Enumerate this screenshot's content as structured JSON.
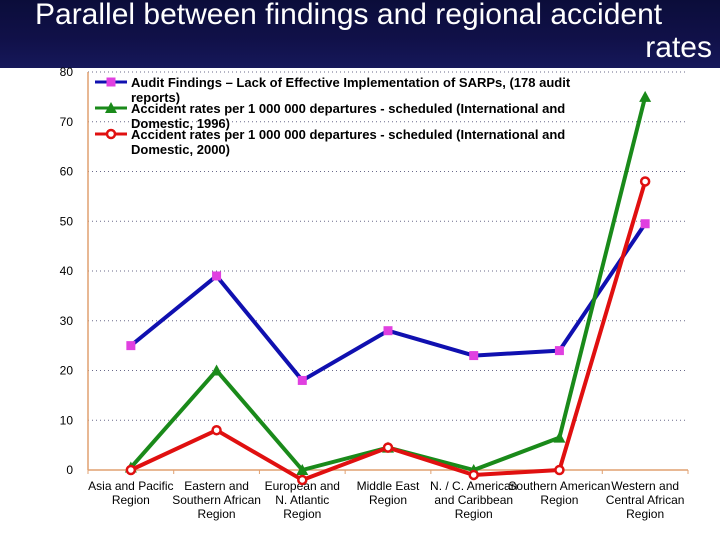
{
  "header": {
    "title_line1": "Parallel between findings and regional accident",
    "title_line2": "rates"
  },
  "colors": {
    "header_bg": "#101048",
    "axis": "#e0a070",
    "grid": "#6a6a8a"
  },
  "chart_data": {
    "type": "line",
    "title": "Parallel between findings and regional accident rates",
    "ylim": [
      0,
      80
    ],
    "yticks": [
      0,
      10,
      20,
      30,
      40,
      50,
      60,
      70,
      80
    ],
    "grid": true,
    "legend_placement": "top-left",
    "categories": [
      [
        "Asia and Pacific",
        "Region"
      ],
      [
        "Eastern and",
        "Southern African",
        "Region"
      ],
      [
        "European and",
        "N. Atlantic",
        "Region"
      ],
      [
        "Middle East",
        "Region"
      ],
      [
        "N. / C. American",
        "and Caribbean",
        "Region"
      ],
      [
        "Southern American",
        "Region"
      ],
      [
        "Western and",
        "Central African",
        "Region"
      ]
    ],
    "series": [
      {
        "name": "Audit Findings – Lack of Effective Implementation of SARPs, (178 audit reports)",
        "legend_lines": [
          "Audit Findings – Lack of Effective Implementation of SARPs, (178 audit",
          "reports)"
        ],
        "color": "#1010b0",
        "marker": "square",
        "marker_color": "#e040e0",
        "values": [
          25,
          39,
          18,
          28,
          23,
          24,
          49.5
        ]
      },
      {
        "name": "Accident rates per 1 000 000 departures - scheduled (International and Domestic, 1996)",
        "legend_lines": [
          "Accident rates per 1 000 000 departures - scheduled (International and",
          "Domestic, 1996)"
        ],
        "color": "#1a8a1a",
        "marker": "triangle",
        "marker_color": "#1a8a1a",
        "values": [
          0.5,
          20,
          0,
          4.5,
          0,
          6.5,
          75
        ]
      },
      {
        "name": "Accident rates per 1 000 000 departures - scheduled (International and Domestic, 2000)",
        "legend_lines": [
          "Accident rates per 1 000 000 departures - scheduled (International and",
          "Domestic, 2000)"
        ],
        "color": "#e01010",
        "marker": "circle",
        "marker_color": "#e01010",
        "values": [
          0,
          8,
          -2,
          4.5,
          -1,
          0,
          58
        ]
      }
    ]
  }
}
